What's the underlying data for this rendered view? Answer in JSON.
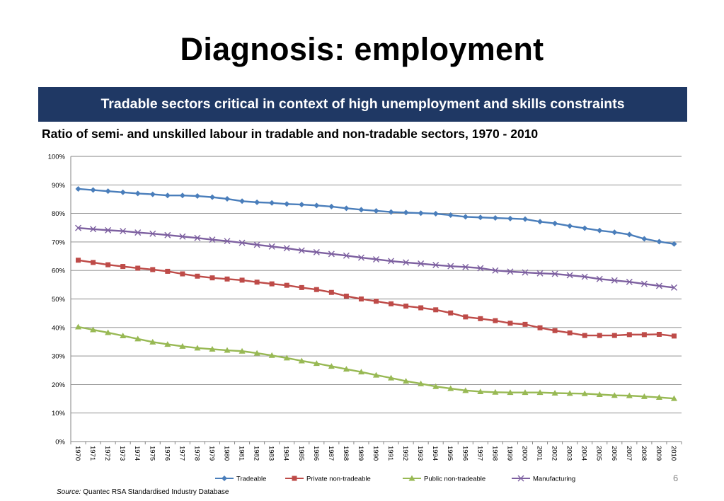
{
  "slide": {
    "title": "Diagnosis: employment",
    "banner": "Tradable sectors critical in context of high unemployment and skills constraints",
    "page_number": "6",
    "source_label": "Source:",
    "source_text": "Quantec RSA Standardised Industry Database"
  },
  "colors": {
    "banner_bg": "#1f3864",
    "tradeable": "#4a7ebb",
    "private_non_tradeable": "#be4b48",
    "public_non_tradeable": "#98b954",
    "manufacturing": "#7d60a0"
  },
  "chart_data": {
    "type": "line",
    "title": "Ratio of semi- and unskilled labour in tradable and non-tradable sectors, 1970 - 2010",
    "xlabel": "",
    "ylabel": "",
    "ylim": [
      0,
      100
    ],
    "yticks": [
      "0%",
      "10%",
      "20%",
      "30%",
      "40%",
      "50%",
      "60%",
      "70%",
      "80%",
      "90%",
      "100%"
    ],
    "grid": true,
    "legend_position": "bottom",
    "x": [
      "1970",
      "1971",
      "1972",
      "1973",
      "1974",
      "1975",
      "1976",
      "1977",
      "1978",
      "1979",
      "1980",
      "1981",
      "1982",
      "1983",
      "1984",
      "1985",
      "1986",
      "1987",
      "1988",
      "1989",
      "1990",
      "1991",
      "1992",
      "1993",
      "1994",
      "1995",
      "1996",
      "1997",
      "1998",
      "1999",
      "2000",
      "2001",
      "2002",
      "2003",
      "2004",
      "2005",
      "2006",
      "2007",
      "2008",
      "2009",
      "2010"
    ],
    "series": [
      {
        "name": "Tradeable",
        "marker": "diamond",
        "color": "#4a7ebb",
        "values": [
          88.6,
          88.2,
          87.8,
          87.4,
          87.0,
          86.7,
          86.3,
          86.3,
          86.1,
          85.7,
          85.1,
          84.3,
          83.9,
          83.7,
          83.3,
          83.1,
          82.8,
          82.4,
          81.8,
          81.3,
          80.9,
          80.5,
          80.3,
          80.1,
          79.9,
          79.4,
          78.8,
          78.6,
          78.4,
          78.2,
          78.0,
          77.1,
          76.5,
          75.6,
          74.8,
          74.0,
          73.4,
          72.6,
          71.1,
          70.1,
          69.3
        ]
      },
      {
        "name": "Private non-tradeable",
        "marker": "square",
        "color": "#be4b48",
        "values": [
          63.6,
          62.8,
          62.0,
          61.4,
          60.8,
          60.3,
          59.7,
          58.8,
          58.0,
          57.4,
          57.0,
          56.6,
          55.9,
          55.3,
          54.8,
          54.0,
          53.3,
          52.3,
          51.0,
          50.0,
          49.2,
          48.3,
          47.5,
          46.9,
          46.2,
          45.1,
          43.7,
          43.1,
          42.4,
          41.5,
          41.1,
          39.9,
          38.9,
          38.1,
          37.2,
          37.2,
          37.2,
          37.5,
          37.5,
          37.6,
          37.0
        ]
      },
      {
        "name": "Public non-tradeable",
        "marker": "triangle",
        "color": "#98b954",
        "values": [
          40.2,
          39.2,
          38.2,
          37.1,
          36.0,
          34.9,
          34.1,
          33.4,
          32.8,
          32.4,
          32.0,
          31.7,
          31.0,
          30.2,
          29.3,
          28.3,
          27.4,
          26.4,
          25.4,
          24.4,
          23.3,
          22.3,
          21.2,
          20.3,
          19.3,
          18.6,
          17.9,
          17.5,
          17.3,
          17.2,
          17.2,
          17.2,
          17.0,
          16.9,
          16.8,
          16.5,
          16.2,
          16.1,
          15.8,
          15.5,
          15.1
        ]
      },
      {
        "name": "Manufacturing",
        "marker": "x",
        "color": "#7d60a0",
        "values": [
          74.9,
          74.5,
          74.1,
          73.8,
          73.3,
          72.9,
          72.4,
          71.9,
          71.4,
          70.8,
          70.3,
          69.7,
          69.0,
          68.4,
          67.8,
          67.0,
          66.4,
          65.8,
          65.2,
          64.5,
          63.9,
          63.3,
          62.8,
          62.4,
          61.9,
          61.5,
          61.2,
          60.8,
          60.0,
          59.6,
          59.3,
          59.0,
          58.8,
          58.3,
          57.8,
          57.0,
          56.5,
          56.0,
          55.3,
          54.6,
          54.0
        ]
      }
    ]
  }
}
